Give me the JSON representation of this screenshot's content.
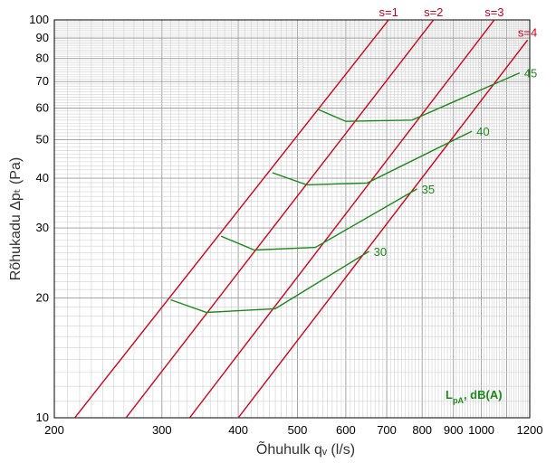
{
  "chart_data": {
    "type": "line",
    "x_scale": "log",
    "y_scale": "log",
    "xlim": [
      200,
      1200
    ],
    "ylim": [
      10,
      100
    ],
    "grid": true,
    "xlabel": "Õhuhulk qᵥ (l/s)",
    "ylabel": "Rõhukadu Δpₜ (Pa)",
    "x_ticks": [
      200,
      300,
      400,
      500,
      600,
      700,
      800,
      900,
      1000,
      1200
    ],
    "y_ticks": [
      10,
      20,
      30,
      40,
      50,
      60,
      70,
      80,
      90,
      100
    ],
    "legend_label": "LpA, dB(A)",
    "system_lines": [
      {
        "name": "s=1",
        "color": "#d0021b",
        "points": [
          [
            216,
            10
          ],
          [
            705,
            100
          ]
        ]
      },
      {
        "name": "s=2",
        "color": "#d0021b",
        "points": [
          [
            262,
            10
          ],
          [
            835,
            100
          ]
        ]
      },
      {
        "name": "s=3",
        "color": "#d0021b",
        "points": [
          [
            333,
            10
          ],
          [
            1050,
            100
          ]
        ]
      },
      {
        "name": "s=4",
        "color": "#d0021b",
        "points": [
          [
            400,
            10
          ],
          [
            1190,
            89
          ]
        ]
      }
    ],
    "noise_curves": [
      {
        "name": "30",
        "color": "#1a8a1a",
        "points": [
          [
            310,
            19.8
          ],
          [
            355,
            18.4
          ],
          [
            460,
            18.8
          ],
          [
            655,
            26.2
          ]
        ]
      },
      {
        "name": "35",
        "color": "#1a8a1a",
        "points": [
          [
            375,
            28.6
          ],
          [
            425,
            26.4
          ],
          [
            535,
            26.8
          ],
          [
            785,
            37.6
          ]
        ]
      },
      {
        "name": "40",
        "color": "#1a8a1a",
        "points": [
          [
            455,
            41.3
          ],
          [
            518,
            38.5
          ],
          [
            650,
            38.9
          ],
          [
            965,
            52.5
          ]
        ]
      },
      {
        "name": "45",
        "color": "#1a8a1a",
        "points": [
          [
            540,
            59.6
          ],
          [
            600,
            55.6
          ],
          [
            770,
            56.0
          ],
          [
            1155,
            73.6
          ]
        ]
      }
    ]
  }
}
